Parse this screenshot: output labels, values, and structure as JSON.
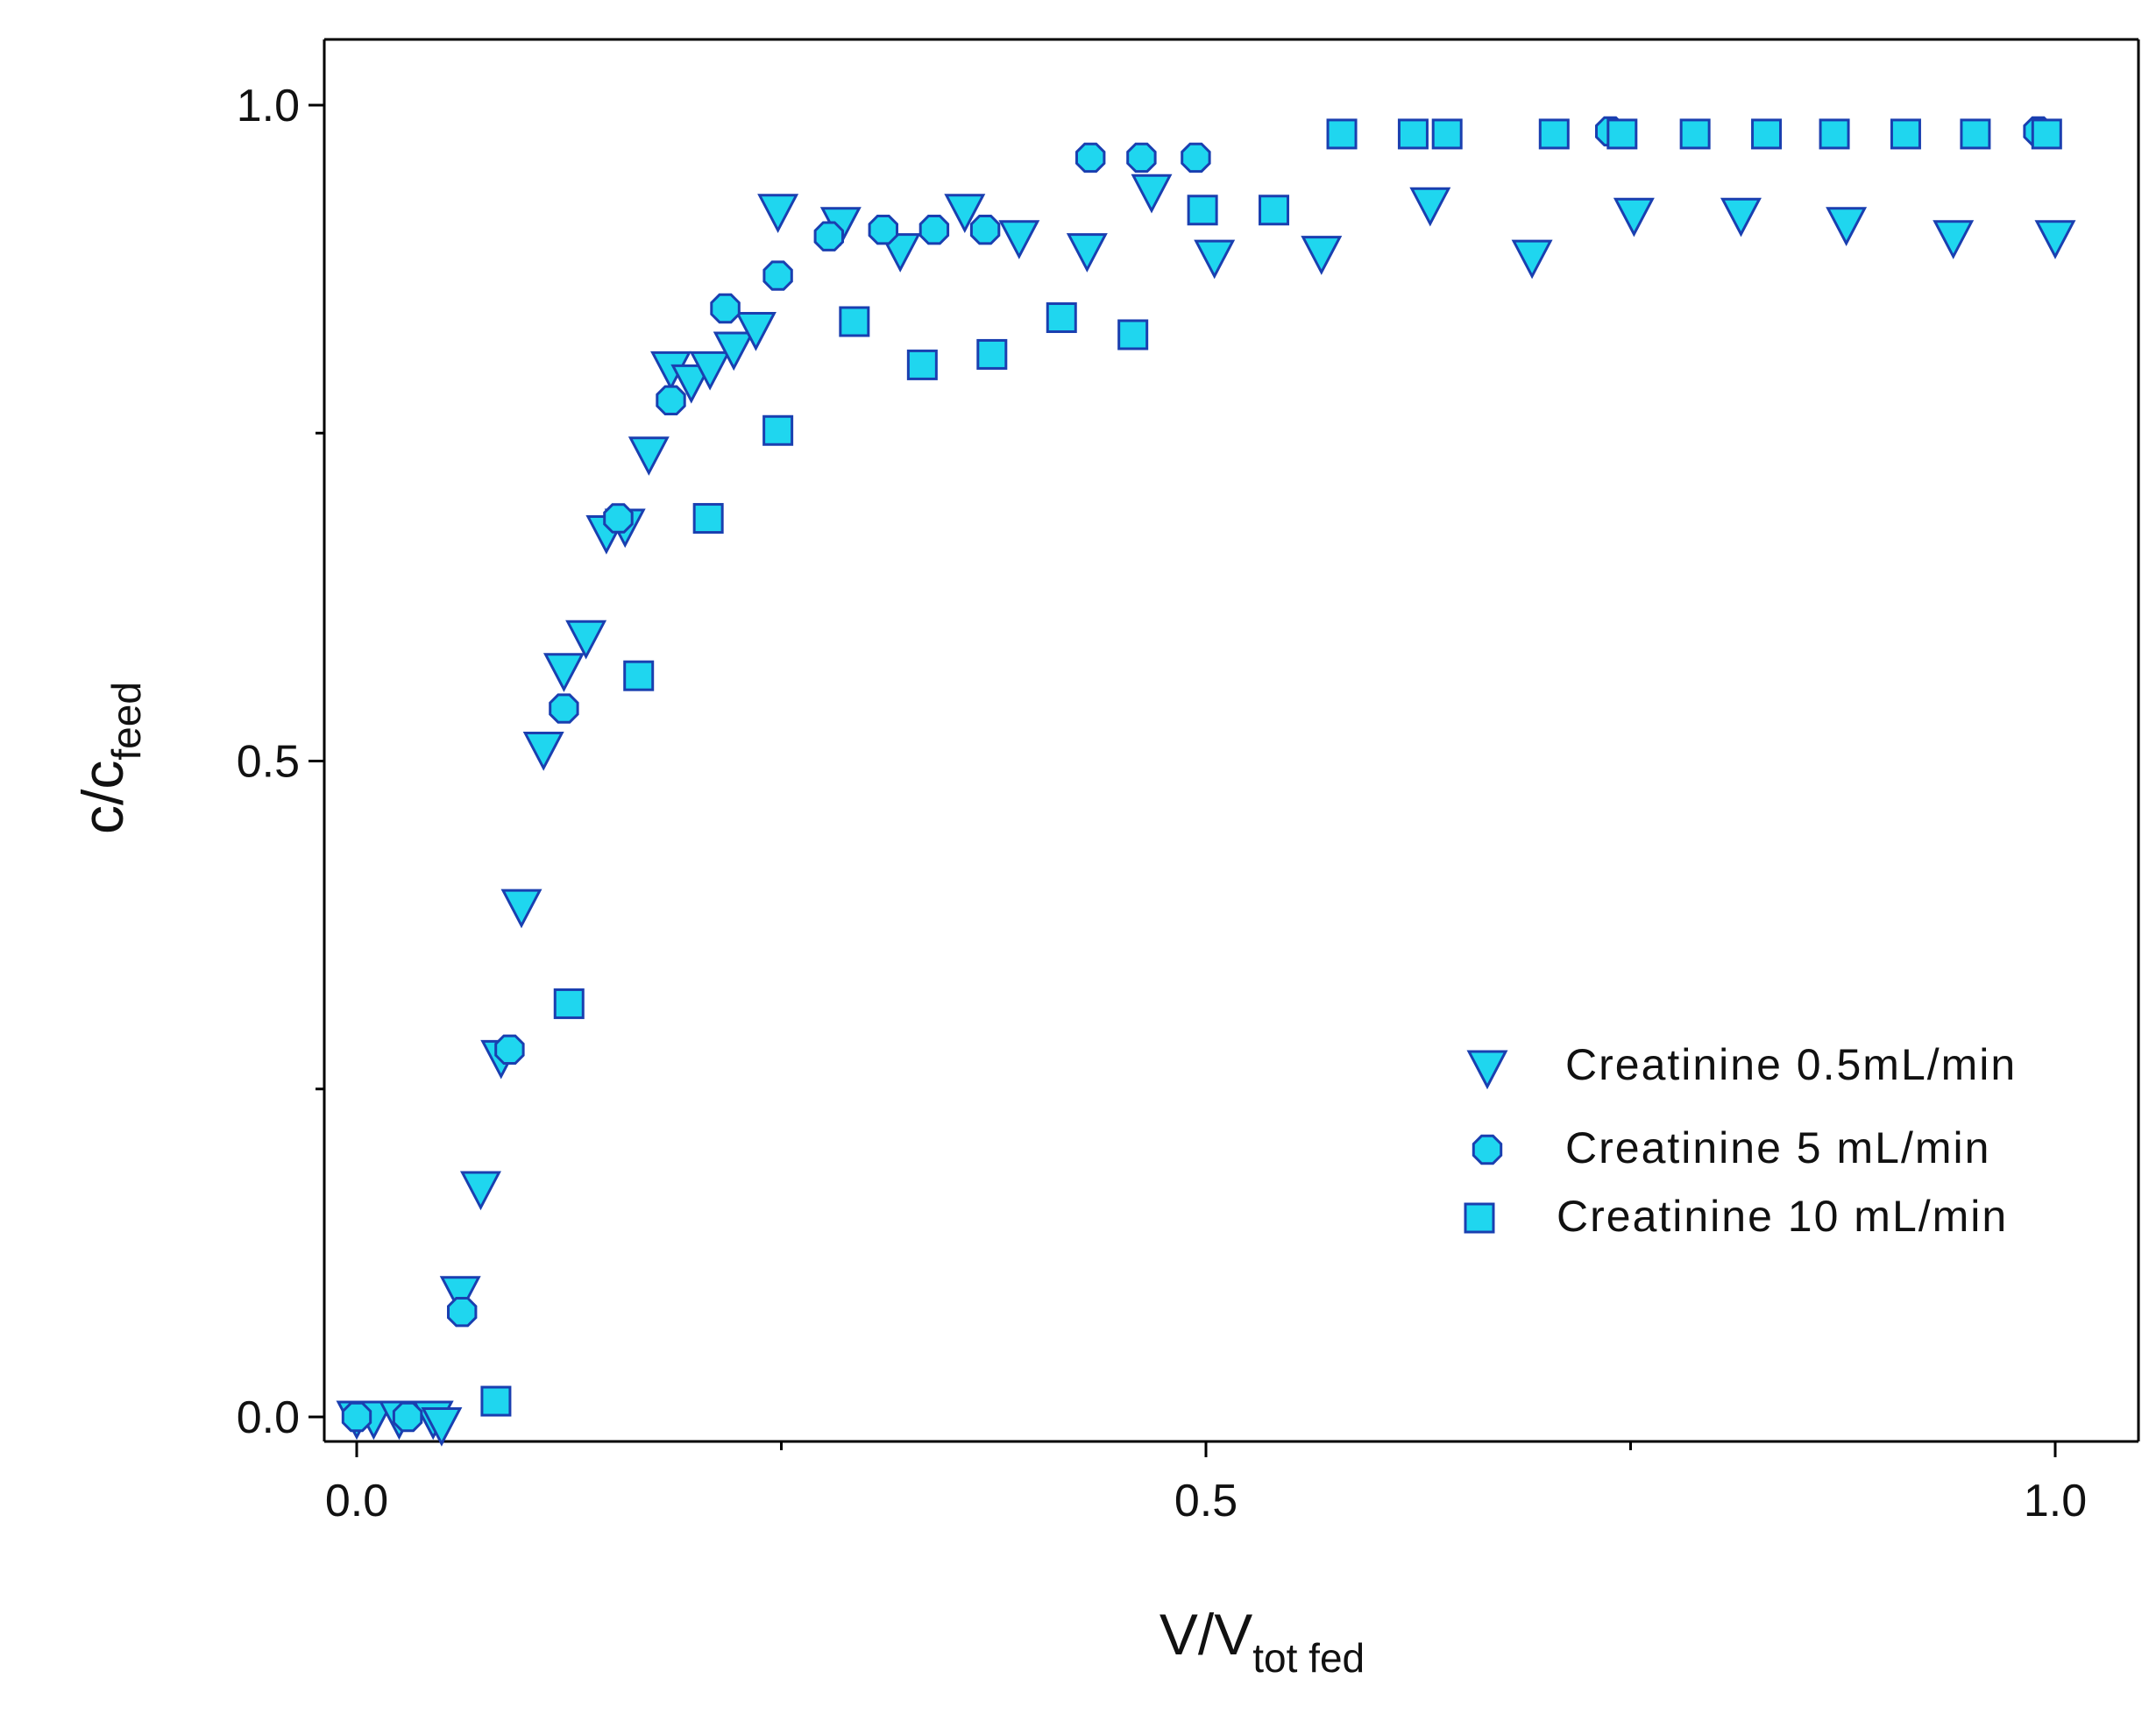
{
  "chart_data": {
    "type": "scatter",
    "title": "",
    "xlabel": {
      "main": "V/V",
      "sub": "tot fed"
    },
    "ylabel": {
      "main": "c/c",
      "sub": "feed"
    },
    "xlim": [
      -0.02,
      1.05
    ],
    "ylim": [
      -0.02,
      1.05
    ],
    "xticks": [
      {
        "value": 0.0,
        "label": "0.0"
      },
      {
        "value": 0.5,
        "label": "0.5"
      },
      {
        "value": 1.0,
        "label": "1.0"
      }
    ],
    "xminor": [
      0.25,
      0.75
    ],
    "yticks": [
      {
        "value": 0.0,
        "label": "0.0"
      },
      {
        "value": 0.5,
        "label": "0.5"
      },
      {
        "value": 1.0,
        "label": "1.0"
      }
    ],
    "yminor": [
      0.25,
      0.75
    ],
    "grid": false,
    "legend_position": "lower-right",
    "marker_fill": "#1fd6ef",
    "marker_stroke": "#1a3fb0",
    "series": [
      {
        "name": "Creatinine 0.5mL/min",
        "marker": "triangle-down",
        "points": [
          [
            0.0,
            0.0
          ],
          [
            0.01,
            0.0
          ],
          [
            0.025,
            0.0
          ],
          [
            0.045,
            0.0
          ],
          [
            0.05,
            -0.005
          ],
          [
            0.061,
            0.095
          ],
          [
            0.073,
            0.175
          ],
          [
            0.085,
            0.275
          ],
          [
            0.097,
            0.39
          ],
          [
            0.11,
            0.51
          ],
          [
            0.122,
            0.57
          ],
          [
            0.135,
            0.595
          ],
          [
            0.147,
            0.675
          ],
          [
            0.158,
            0.68
          ],
          [
            0.172,
            0.735
          ],
          [
            0.185,
            0.8
          ],
          [
            0.197,
            0.79
          ],
          [
            0.208,
            0.8
          ],
          [
            0.222,
            0.815
          ],
          [
            0.235,
            0.83
          ],
          [
            0.248,
            0.92
          ],
          [
            0.285,
            0.91
          ],
          [
            0.32,
            0.89
          ],
          [
            0.358,
            0.92
          ],
          [
            0.39,
            0.9
          ],
          [
            0.43,
            0.89
          ],
          [
            0.468,
            0.935
          ],
          [
            0.505,
            0.885
          ],
          [
            0.568,
            0.888
          ],
          [
            0.632,
            0.925
          ],
          [
            0.692,
            0.885
          ],
          [
            0.752,
            0.917
          ],
          [
            0.815,
            0.917
          ],
          [
            0.877,
            0.91
          ],
          [
            0.94,
            0.9
          ],
          [
            1.0,
            0.9
          ]
        ]
      },
      {
        "name": "Creatinine 5 mL/min",
        "marker": "circle",
        "points": [
          [
            0.0,
            0.0
          ],
          [
            0.03,
            0.0
          ],
          [
            0.062,
            0.08
          ],
          [
            0.09,
            0.28
          ],
          [
            0.122,
            0.54
          ],
          [
            0.154,
            0.685
          ],
          [
            0.185,
            0.775
          ],
          [
            0.217,
            0.845
          ],
          [
            0.248,
            0.87
          ],
          [
            0.278,
            0.9
          ],
          [
            0.31,
            0.905
          ],
          [
            0.34,
            0.905
          ],
          [
            0.37,
            0.905
          ],
          [
            0.432,
            0.96
          ],
          [
            0.462,
            0.96
          ],
          [
            0.494,
            0.96
          ],
          [
            0.738,
            0.98
          ],
          [
            0.99,
            0.98
          ]
        ]
      },
      {
        "name": "Creatinine 10 mL/min",
        "marker": "square",
        "points": [
          [
            0.082,
            0.012
          ],
          [
            0.125,
            0.315
          ],
          [
            0.166,
            0.565
          ],
          [
            0.207,
            0.685
          ],
          [
            0.248,
            0.752
          ],
          [
            0.293,
            0.835
          ],
          [
            0.333,
            0.802
          ],
          [
            0.374,
            0.81
          ],
          [
            0.415,
            0.838
          ],
          [
            0.457,
            0.825
          ],
          [
            0.498,
            0.92
          ],
          [
            0.54,
            0.92
          ],
          [
            0.58,
            0.978
          ],
          [
            0.622,
            0.978
          ],
          [
            0.642,
            0.978
          ],
          [
            0.705,
            0.978
          ],
          [
            0.745,
            0.978
          ],
          [
            0.788,
            0.978
          ],
          [
            0.83,
            0.978
          ],
          [
            0.87,
            0.978
          ],
          [
            0.912,
            0.978
          ],
          [
            0.953,
            0.978
          ],
          [
            0.995,
            0.978
          ]
        ]
      }
    ]
  }
}
